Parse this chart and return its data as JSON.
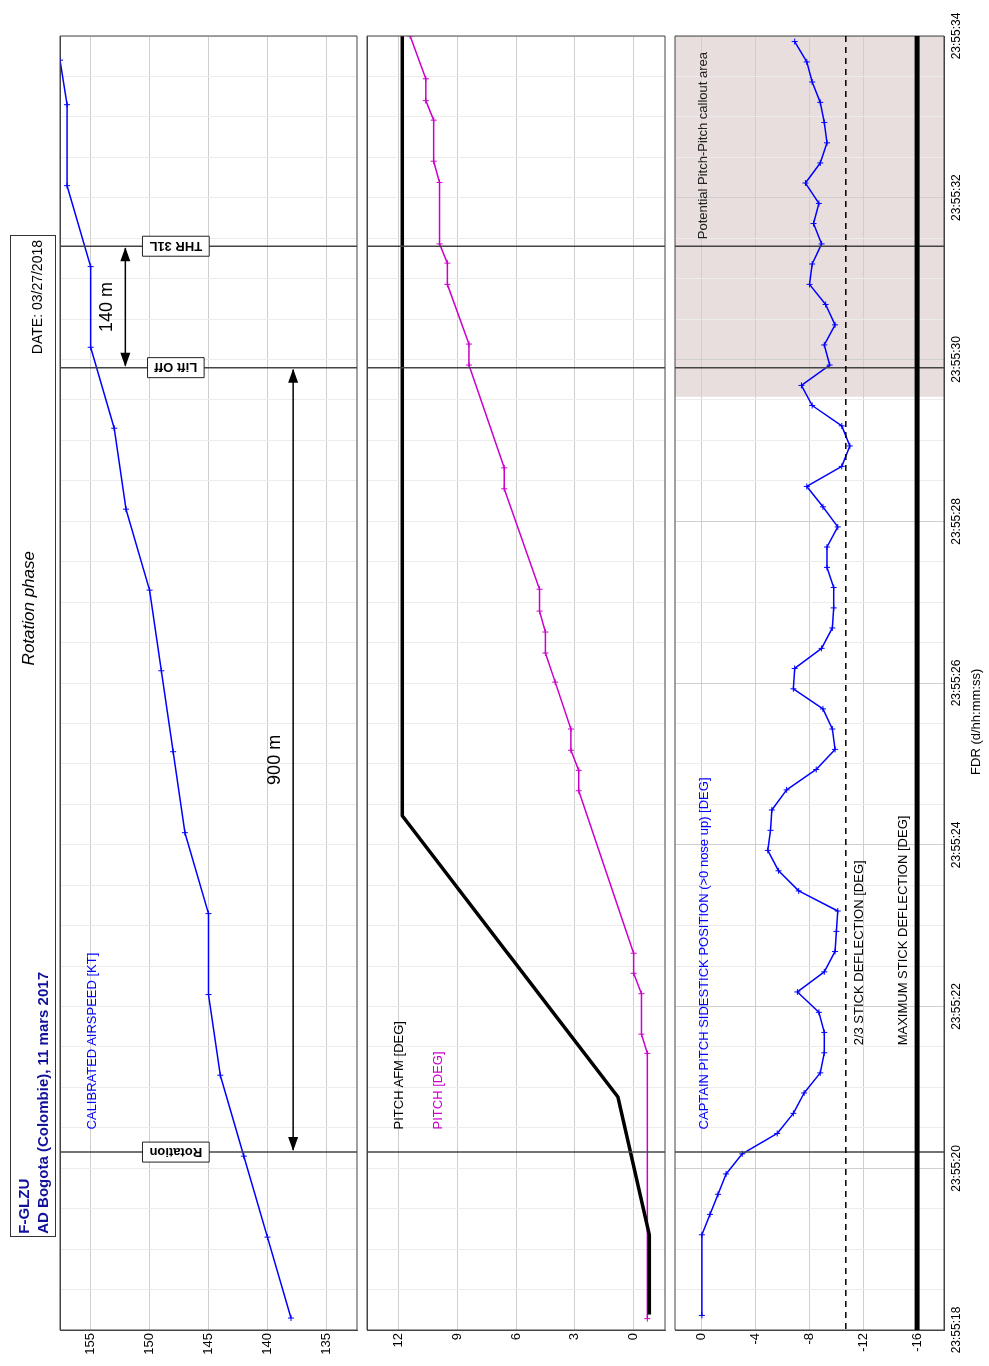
{
  "chart_data": [
    {
      "type": "line",
      "title": "Rotation phase",
      "annotations": [
        "F-GLZU",
        "AD Bogota (Colombie), 11 mars 2017",
        "DATE: 03/27/2018",
        "140 m",
        "900 m"
      ],
      "xlim": [
        157.6,
        132.4
      ],
      "xticks": [
        155,
        150,
        145,
        140,
        135
      ],
      "ylim": [
        23.921667,
        23.926111
      ],
      "yticks": [
        {
          "value": 23.921667,
          "label": null
        },
        {
          "value": 23.921806,
          "label": null
        },
        {
          "value": 23.921944,
          "label": null
        },
        {
          "value": 23.922083,
          "label": null
        },
        {
          "value": 23.922222,
          "label": null
        },
        {
          "value": 23.922361,
          "label": null
        },
        {
          "value": 23.9225,
          "label": null
        },
        {
          "value": 23.922639,
          "label": null
        },
        {
          "value": 23.922778,
          "label": null
        },
        {
          "value": 23.922917,
          "label": null
        },
        {
          "value": 23.923056,
          "label": null
        },
        {
          "value": 23.923194,
          "label": null
        },
        {
          "value": 23.923333,
          "label": null
        },
        {
          "value": 23.923472,
          "label": null
        },
        {
          "value": 23.923611,
          "label": null
        },
        {
          "value": 23.92375,
          "label": null
        },
        {
          "value": 23.923889,
          "label": null
        },
        {
          "value": 23.924028,
          "label": null
        },
        {
          "value": 23.924167,
          "label": null
        },
        {
          "value": 23.924306,
          "label": null
        },
        {
          "value": 23.924444,
          "label": null
        },
        {
          "value": 23.924583,
          "label": null
        },
        {
          "value": 23.924722,
          "label": null
        },
        {
          "value": 23.924861,
          "label": null
        },
        {
          "value": 23.925,
          "label": null
        },
        {
          "value": 23.925139,
          "label": null
        },
        {
          "value": 23.925278,
          "label": null
        },
        {
          "value": 23.925417,
          "label": null
        },
        {
          "value": 23.925556,
          "label": null
        },
        {
          "value": 23.925694,
          "label": null
        },
        {
          "value": 23.925833,
          "label": null
        },
        {
          "value": 23.925972,
          "label": null
        },
        {
          "value": 23.926111,
          "label": null
        }
      ],
      "grid": true,
      "tick_labels": "x",
      "ref_lines": [
        {
          "axis": "y",
          "value": 23.922278,
          "label": "Rotation"
        },
        {
          "axis": "y",
          "value": 23.924972,
          "label": "Lift Off"
        },
        {
          "axis": "y",
          "value": 23.925389,
          "label": "THR 31L"
        }
      ],
      "series": [
        {
          "name": "CALIBRATED AIRSPEED [KT]",
          "color": "#0000ff",
          "marker": "cross",
          "x": [
            138,
            140,
            142,
            144,
            145,
            145,
            147,
            148,
            149,
            150,
            152,
            153,
            155,
            155,
            157,
            157,
            157.6
          ],
          "values": [
            23.921708,
            23.921986,
            23.922264,
            23.922542,
            23.922819,
            23.923097,
            23.923375,
            23.923653,
            23.923931,
            23.924208,
            23.924486,
            23.924764,
            23.925042,
            23.925319,
            23.925597,
            23.925875,
            23.926028
          ]
        }
      ]
    },
    {
      "type": "line",
      "xlim": [
        13.6,
        -1.6
      ],
      "xticks": [
        12,
        9,
        6,
        3,
        0
      ],
      "ylim": [
        23.921667,
        23.926111
      ],
      "yticks": [
        {
          "value": 23.921667,
          "label": null
        },
        {
          "value": 23.921806,
          "label": null
        },
        {
          "value": 23.921944,
          "label": null
        },
        {
          "value": 23.922083,
          "label": null
        },
        {
          "value": 23.922222,
          "label": null
        },
        {
          "value": 23.922361,
          "label": null
        },
        {
          "value": 23.9225,
          "label": null
        },
        {
          "value": 23.922639,
          "label": null
        },
        {
          "value": 23.922778,
          "label": null
        },
        {
          "value": 23.922917,
          "label": null
        },
        {
          "value": 23.923056,
          "label": null
        },
        {
          "value": 23.923194,
          "label": null
        },
        {
          "value": 23.923333,
          "label": null
        },
        {
          "value": 23.923472,
          "label": null
        },
        {
          "value": 23.923611,
          "label": null
        },
        {
          "value": 23.92375,
          "label": null
        },
        {
          "value": 23.923889,
          "label": null
        },
        {
          "value": 23.924028,
          "label": null
        },
        {
          "value": 23.924167,
          "label": null
        },
        {
          "value": 23.924306,
          "label": null
        },
        {
          "value": 23.924444,
          "label": null
        },
        {
          "value": 23.924583,
          "label": null
        },
        {
          "value": 23.924722,
          "label": null
        },
        {
          "value": 23.924861,
          "label": null
        },
        {
          "value": 23.925,
          "label": null
        },
        {
          "value": 23.925139,
          "label": null
        },
        {
          "value": 23.925278,
          "label": null
        },
        {
          "value": 23.925417,
          "label": null
        },
        {
          "value": 23.925556,
          "label": null
        },
        {
          "value": 23.925694,
          "label": null
        },
        {
          "value": 23.925833,
          "label": null
        },
        {
          "value": 23.925972,
          "label": null
        },
        {
          "value": 23.926111,
          "label": null
        }
      ],
      "grid": true,
      "tick_labels": "x",
      "ref_lines": [
        {
          "axis": "y",
          "value": 23.922278
        },
        {
          "axis": "y",
          "value": 23.924972
        },
        {
          "axis": "y",
          "value": 23.925389
        }
      ],
      "series": [
        {
          "name": "PITCH AFM [DEG]",
          "color": "#000000",
          "marker": "none",
          "x": [
            -0.8,
            -0.8,
            0.8,
            11.8,
            11.8
          ],
          "values": [
            23.92172,
            23.921994,
            23.922467,
            23.923433,
            23.926111
          ]
        },
        {
          "name": "PITCH [DEG]",
          "color": "#cc00cc",
          "marker": "cross",
          "x": [
            -0.7,
            -0.7,
            -0.4,
            -0.4,
            0,
            0,
            2.8,
            2.8,
            3.2,
            3.2,
            4.0,
            4.5,
            4.5,
            4.8,
            4.8,
            6.6,
            6.6,
            8.4,
            8.4,
            9.5,
            9.5,
            9.9,
            9.9,
            10.2,
            10.2,
            10.6,
            10.6,
            11.4
          ],
          "values": [
            23.921706,
            23.922617,
            23.922683,
            23.922822,
            23.922892,
            23.922961,
            23.923519,
            23.923589,
            23.923658,
            23.923731,
            23.923892,
            23.923992,
            23.924064,
            23.924136,
            23.924211,
            23.924556,
            23.924628,
            23.924981,
            23.925053,
            23.925258,
            23.925331,
            23.925397,
            23.925608,
            23.925681,
            23.925822,
            23.925889,
            23.925964,
            23.926111
          ]
        }
      ]
    },
    {
      "type": "line",
      "ylabel": "FDR (d/hh:mm:ss)",
      "xlim": [
        2,
        -18
      ],
      "xticks": [
        0,
        -4,
        -8,
        -12,
        -16
      ],
      "ylim": [
        23.921667,
        23.926111
      ],
      "yticks": [
        {
          "value": 23.921667,
          "label": "23:55:18"
        },
        {
          "value": 23.921806,
          "label": null
        },
        {
          "value": 23.921944,
          "label": null
        },
        {
          "value": 23.922083,
          "label": null
        },
        {
          "value": 23.922222,
          "label": "23:55:20"
        },
        {
          "value": 23.922361,
          "label": null
        },
        {
          "value": 23.9225,
          "label": null
        },
        {
          "value": 23.922639,
          "label": null
        },
        {
          "value": 23.922778,
          "label": "23:55:22"
        },
        {
          "value": 23.922917,
          "label": null
        },
        {
          "value": 23.923056,
          "label": null
        },
        {
          "value": 23.923194,
          "label": null
        },
        {
          "value": 23.923333,
          "label": "23:55:24"
        },
        {
          "value": 23.923472,
          "label": null
        },
        {
          "value": 23.923611,
          "label": null
        },
        {
          "value": 23.92375,
          "label": null
        },
        {
          "value": 23.923889,
          "label": "23:55:26"
        },
        {
          "value": 23.924028,
          "label": null
        },
        {
          "value": 23.924167,
          "label": null
        },
        {
          "value": 23.924306,
          "label": null
        },
        {
          "value": 23.924444,
          "label": "23:55:28"
        },
        {
          "value": 23.924583,
          "label": null
        },
        {
          "value": 23.924722,
          "label": null
        },
        {
          "value": 23.924861,
          "label": null
        },
        {
          "value": 23.925,
          "label": "23:55:30"
        },
        {
          "value": 23.925139,
          "label": null
        },
        {
          "value": 23.925278,
          "label": null
        },
        {
          "value": 23.925417,
          "label": null
        },
        {
          "value": 23.925556,
          "label": "23:55:32"
        },
        {
          "value": 23.925694,
          "label": null
        },
        {
          "value": 23.925833,
          "label": null
        },
        {
          "value": 23.925972,
          "label": null
        },
        {
          "value": 23.926111,
          "label": "23:55:34"
        }
      ],
      "grid": true,
      "ref_lines": [
        {
          "axis": "y",
          "value": 23.922278
        },
        {
          "axis": "y",
          "value": 23.924972
        },
        {
          "axis": "y",
          "value": 23.925389
        },
        {
          "axis": "x",
          "value": -10.7,
          "label": "2/3 STICK DEFLECTION [DEG]",
          "line_style": "dashed",
          "color": "#000000"
        },
        {
          "axis": "x",
          "value": -16,
          "label": "MAXIMUM STICK DEFLECTION [DEG]",
          "color": "#000000"
        }
      ],
      "bands": [
        {
          "axis": "y",
          "from": 23.924872,
          "to": 23.926111,
          "label": "Potential Pitch-Pitch callout area",
          "color": "#e8dede"
        }
      ],
      "series": [
        {
          "name": "CAPTAIN PITCH SIDESTICK POSITION (>0 nose up) [DEG]",
          "color": "#0000ff",
          "marker": "cross",
          "x": [
            0,
            0,
            -0.6,
            -1.2,
            -1.8,
            -3.0,
            -5.6,
            -6.8,
            -7.6,
            -8.8,
            -9.1,
            -9.1,
            -8.7,
            -7.1,
            -9.1,
            -9.9,
            -10.0,
            -10.1,
            -7.2,
            -5.7,
            -4.9,
            -5.1,
            -5.2,
            -6.3,
            -8.5,
            -9.9,
            -9.7,
            -9.0,
            -6.8,
            -6.9,
            -8.9,
            -9.7,
            -9.8,
            -9.8,
            -9.3,
            -9.3,
            -10.1,
            -9.0,
            -7.8,
            -10.4,
            -11.0,
            -10.4,
            -8.2,
            -7.4,
            -9.5,
            -9.1,
            -9.9,
            -9.2,
            -8.0,
            -8.2,
            -8.9,
            -8.3,
            -8.7,
            -7.7,
            -8.8,
            -9.3,
            -9.1,
            -8.8,
            -8.2,
            -7.8,
            -6.9
          ],
          "values": [
            23.921717,
            23.921994,
            23.922064,
            23.922133,
            23.922203,
            23.922272,
            23.922342,
            23.922411,
            23.922481,
            23.92255,
            23.922619,
            23.922689,
            23.922758,
            23.922828,
            23.922897,
            23.922967,
            23.923036,
            23.923106,
            23.923175,
            23.923244,
            23.923314,
            23.923383,
            23.923453,
            23.923522,
            23.923592,
            23.923661,
            23.923731,
            23.9238,
            23.923869,
            23.923939,
            23.924008,
            23.924078,
            23.924147,
            23.924217,
            23.924286,
            23.924356,
            23.924425,
            23.924494,
            23.924564,
            23.924633,
            23.924703,
            23.924772,
            23.924842,
            23.924911,
            23.924981,
            23.92505,
            23.925119,
            23.925189,
            23.925258,
            23.925328,
            23.925397,
            23.925467,
            23.925536,
            23.925606,
            23.925675,
            23.925744,
            23.925814,
            23.925883,
            23.925953,
            23.926022,
            23.926092
          ]
        }
      ]
    }
  ]
}
